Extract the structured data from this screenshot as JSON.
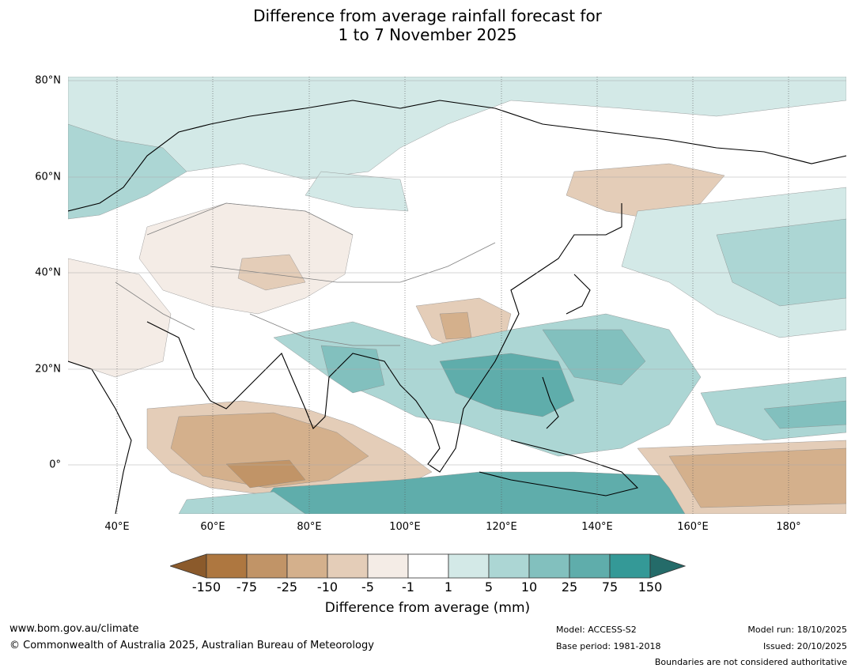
{
  "title": {
    "line1": "Difference from average rainfall forecast for",
    "line2": "1 to 7 November 2025"
  },
  "map": {
    "lat_labels": [
      "80°N",
      "60°N",
      "40°N",
      "20°N",
      "0°"
    ],
    "lon_labels": [
      "40°E",
      "60°E",
      "80°E",
      "100°E",
      "120°E",
      "140°E",
      "160°E",
      "180°"
    ],
    "colors": {
      "ocean": "#ffffff",
      "land_outline": "#000000",
      "border": "#808080",
      "gridline": "#555555"
    }
  },
  "legend": {
    "title": "Difference from average (mm)",
    "ticks": [
      "-150",
      "-75",
      "-25",
      "-10",
      "-5",
      "-1",
      "1",
      "5",
      "10",
      "25",
      "75",
      "150"
    ],
    "colors": [
      "#8b5a2b",
      "#ae7740",
      "#c19467",
      "#d4b08c",
      "#e4cdb8",
      "#f4ece6",
      "#ffffff",
      "#d3e9e7",
      "#acd6d4",
      "#82c0be",
      "#5fadab",
      "#349997",
      "#246b69"
    ]
  },
  "footer": {
    "website": "www.bom.gov.au/climate",
    "copyright": "© Commonwealth of Australia 2025, Australian Bureau of Meteorology",
    "model": "Model: ACCESS-S2",
    "base_period": "Base period: 1981-2018",
    "model_run": "Model run: 18/10/2025",
    "issued": "Issued: 20/10/2025",
    "disclaimer": "Boundaries are not considered authoritative"
  }
}
